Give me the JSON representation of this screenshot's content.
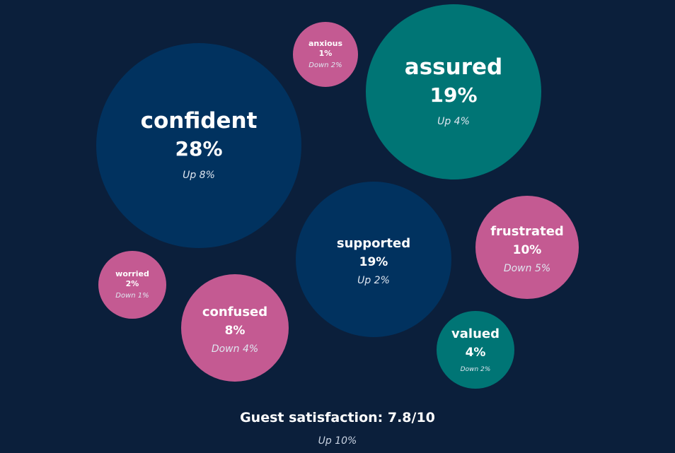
{
  "chart_data": {
    "type": "bubble",
    "bubbles": [
      {
        "label": "confident",
        "value": 28,
        "value_text": "28%",
        "change": "Up 8%",
        "color": "#01325f"
      },
      {
        "label": "assured",
        "value": 19,
        "value_text": "19%",
        "change": "Up 4%",
        "color": "#007575"
      },
      {
        "label": "anxious",
        "value": 1,
        "value_text": "1%",
        "change": "Down 2%",
        "color": "#c45a92"
      },
      {
        "label": "supported",
        "value": 19,
        "value_text": "19%",
        "change": "Up 2%",
        "color": "#01325f"
      },
      {
        "label": "frustrated",
        "value": 10,
        "value_text": "10%",
        "change": "Down 5%",
        "color": "#c45a92"
      },
      {
        "label": "worried",
        "value": 2,
        "value_text": "2%",
        "change": "Down 1%",
        "color": "#c45a92"
      },
      {
        "label": "confused",
        "value": 8,
        "value_text": "8%",
        "change": "Down 4%",
        "color": "#c45a92"
      },
      {
        "label": "valued",
        "value": 4,
        "value_text": "4%",
        "change": "Down 2%",
        "color": "#007575"
      }
    ]
  },
  "footer": {
    "title": "Guest satisfaction: 7.8/10",
    "change": "Up 10%"
  },
  "colors": {
    "background": "#0b1f3b",
    "positive_navy": "#01325f",
    "positive_teal": "#007575",
    "negative_pink": "#c45a92"
  }
}
